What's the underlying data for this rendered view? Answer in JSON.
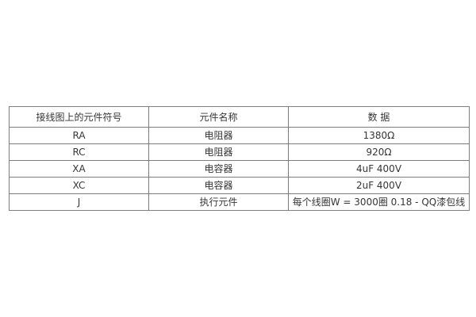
{
  "page": {
    "background_color": "#ffffff",
    "border_color": "#7d7d7d",
    "text_color": "#363636"
  },
  "table": {
    "columns": [
      {
        "label": "接线图上的元件符号"
      },
      {
        "label": "元件名称"
      },
      {
        "label": "数 据"
      }
    ],
    "rows": [
      {
        "symbol": "RA",
        "name": "电阻器",
        "data": "1380Ω"
      },
      {
        "symbol": "RC",
        "name": "电阻器",
        "data": "920Ω"
      },
      {
        "symbol": "XA",
        "name": "电容器",
        "data": "4uF 400V"
      },
      {
        "symbol": "XC",
        "name": "电容器",
        "data": "2uF 400V"
      },
      {
        "symbol": "J",
        "name": "执行元件",
        "data": "每个线圈W = 3000圈 0.18 - QQ漆包线"
      }
    ]
  }
}
